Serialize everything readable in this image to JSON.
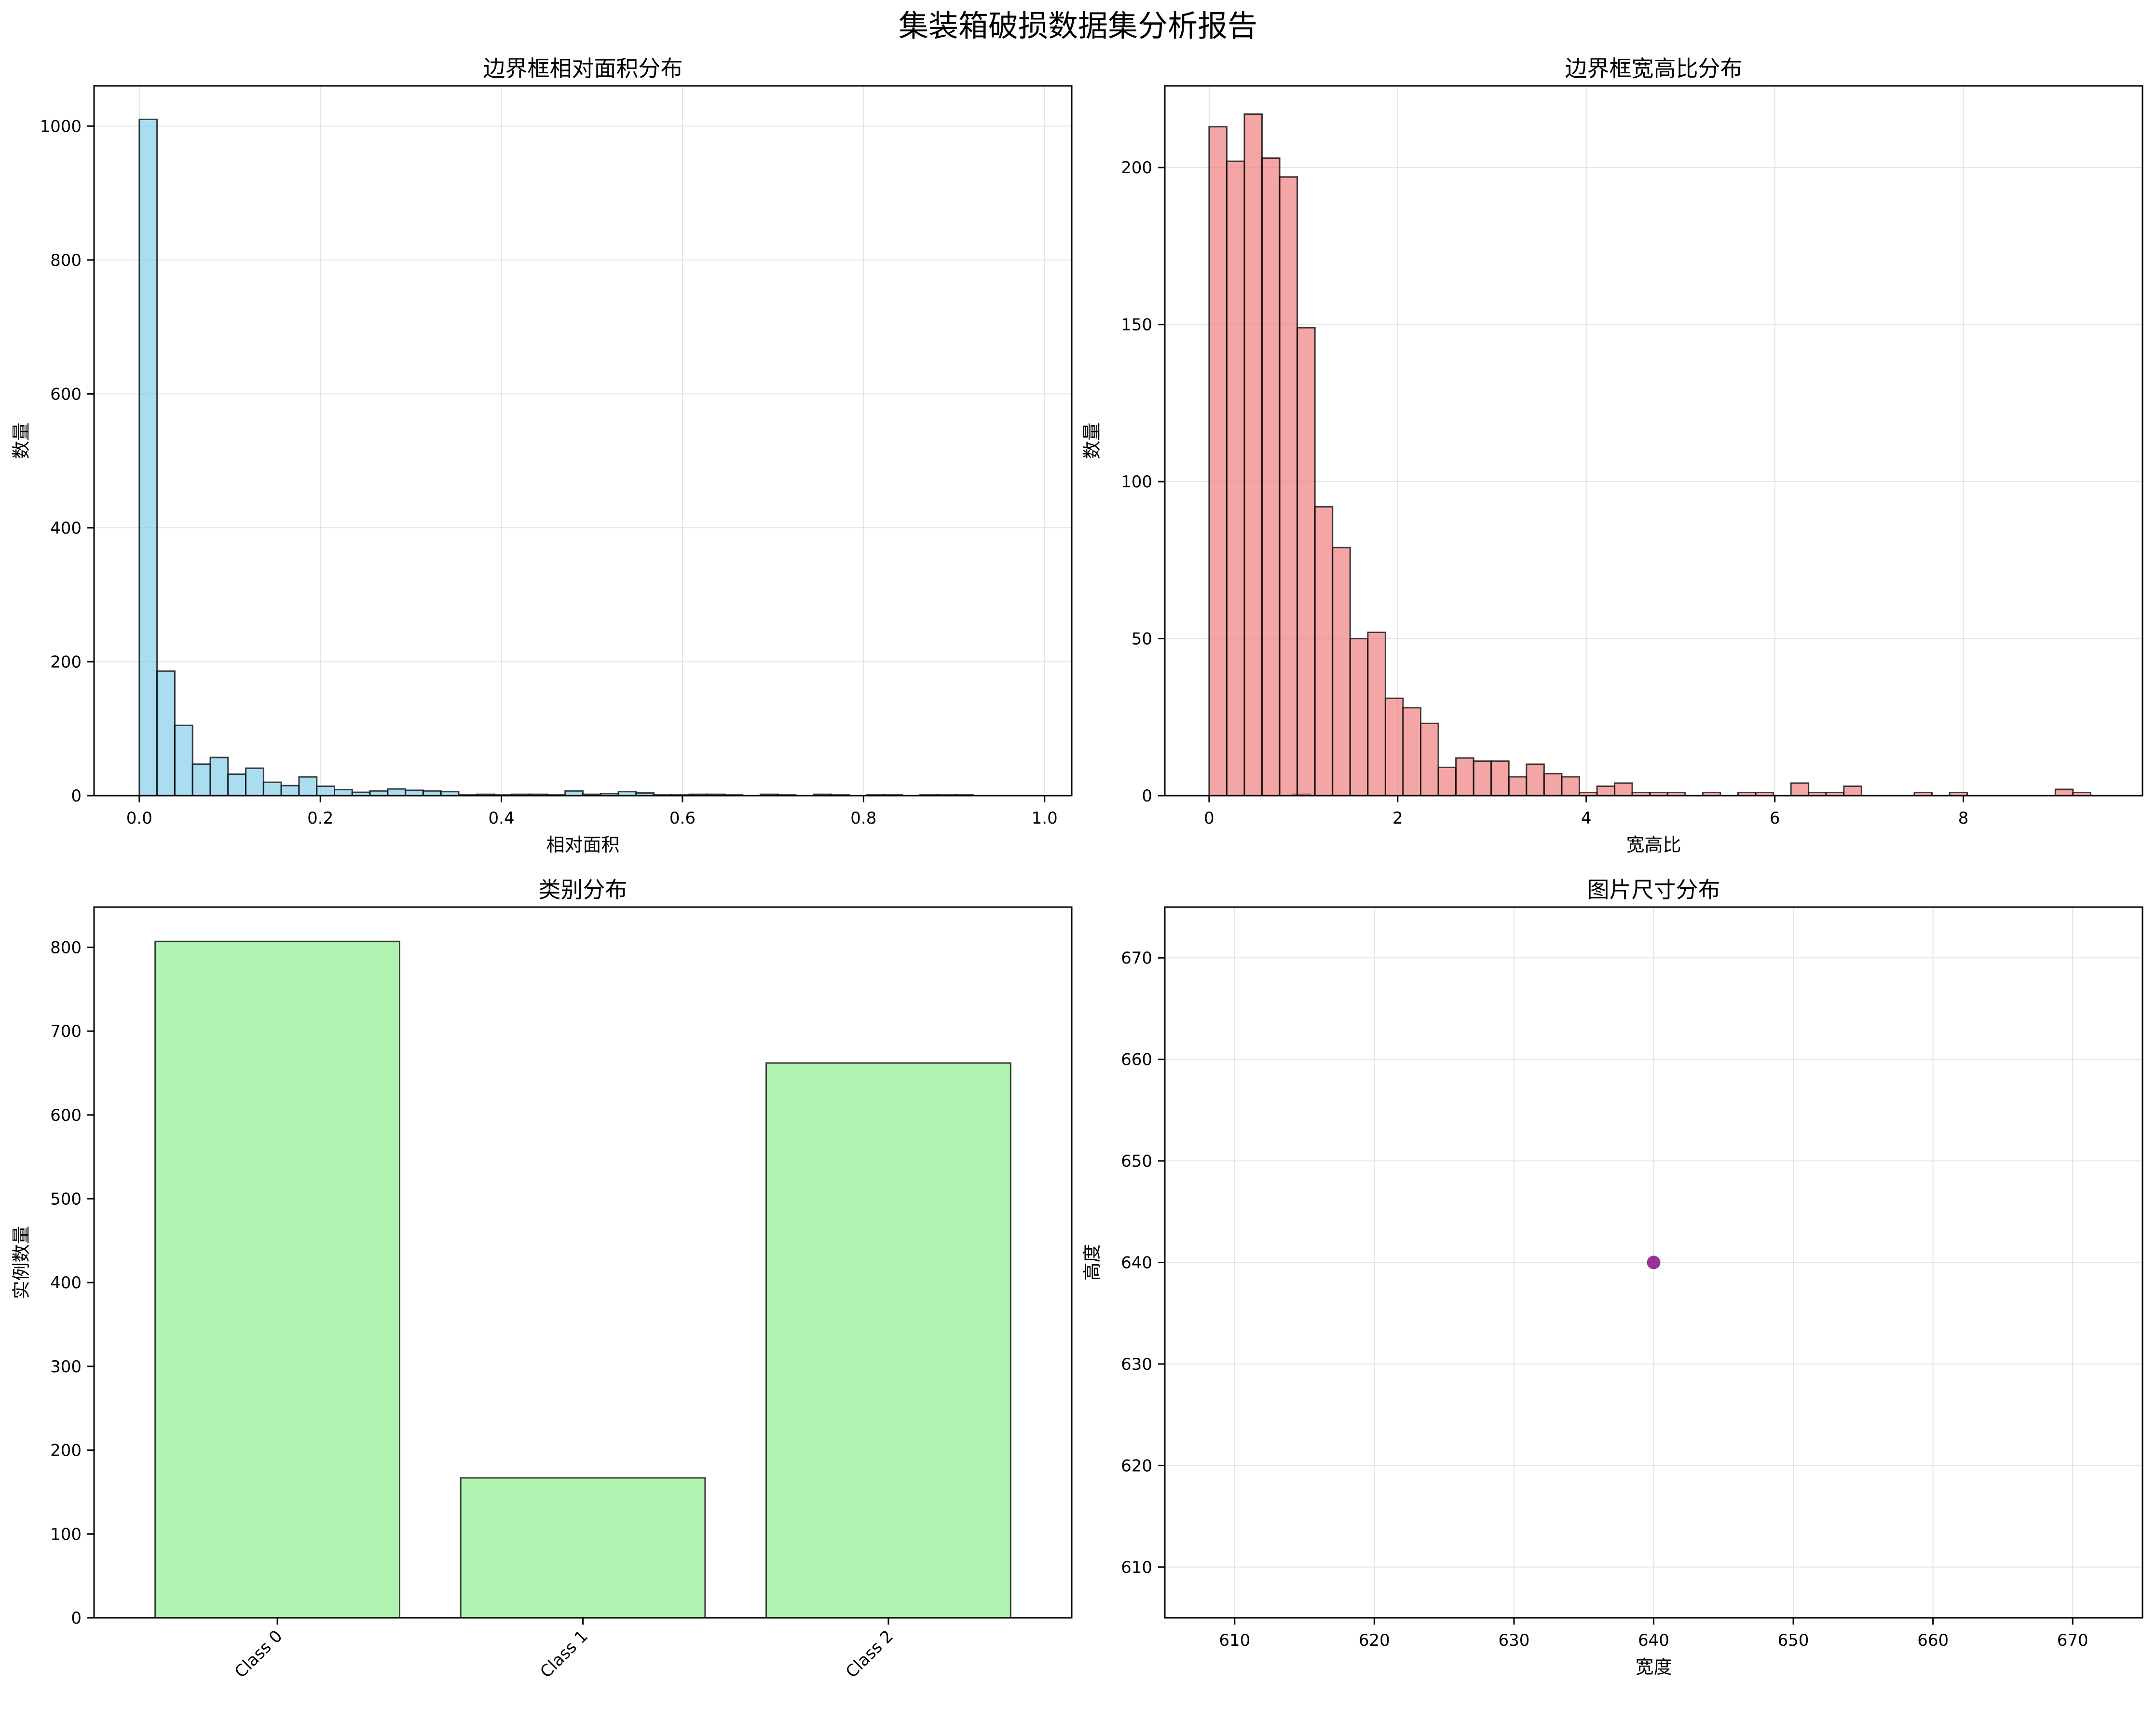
{
  "suptitle": "集装箱破损数据集分析报告",
  "chart_data": [
    {
      "type": "bar",
      "subtype": "histogram",
      "title": "边界框相对面积分布",
      "xlabel": "相对面积",
      "ylabel": "数量",
      "bin_start": 0.0,
      "bin_width": 0.0196,
      "counts": [
        1010,
        186,
        105,
        47,
        57,
        32,
        41,
        20,
        15,
        28,
        14,
        9,
        5,
        7,
        10,
        8,
        7,
        6,
        1,
        2,
        1,
        2,
        2,
        1,
        7,
        2,
        3,
        6,
        4,
        1,
        1,
        2,
        2,
        1,
        0,
        2,
        1,
        0,
        2,
        1,
        0,
        1,
        1,
        0,
        1,
        1,
        1,
        0,
        0,
        0,
        0,
        0,
        0,
        0,
        0,
        0,
        0,
        0,
        0,
        0,
        0,
        0,
        0,
        0,
        0,
        2
      ],
      "xlim": [
        -0.05,
        1.03
      ],
      "ylim": [
        0,
        1060
      ],
      "xticks": [
        0.0,
        0.2,
        0.4,
        0.6,
        0.8,
        1.0
      ],
      "xtick_labels": [
        "0.0",
        "0.2",
        "0.4",
        "0.6",
        "0.8",
        "1.0"
      ],
      "yticks": [
        0,
        200,
        400,
        600,
        800,
        1000
      ],
      "ytick_labels": [
        "0",
        "200",
        "400",
        "600",
        "800",
        "1000"
      ],
      "grid": true,
      "color": "#87ceeb"
    },
    {
      "type": "bar",
      "subtype": "histogram",
      "title": "边界框宽高比分布",
      "xlabel": "宽高比",
      "ylabel": "数量",
      "bin_start": 0.0,
      "bin_width": 0.187,
      "counts": [
        213,
        202,
        217,
        203,
        197,
        149,
        92,
        79,
        50,
        52,
        31,
        28,
        23,
        9,
        12,
        11,
        11,
        6,
        10,
        7,
        6,
        1,
        3,
        4,
        1,
        1,
        1,
        0,
        1,
        0,
        1,
        1,
        0,
        4,
        1,
        1,
        3,
        0,
        0,
        0,
        1,
        0,
        1,
        0,
        0,
        0,
        0,
        0,
        2,
        1
      ],
      "xlim": [
        -0.47,
        9.9
      ],
      "ylim": [
        0,
        226
      ],
      "xticks": [
        0,
        2,
        4,
        6,
        8
      ],
      "xtick_labels": [
        "0",
        "2",
        "4",
        "6",
        "8"
      ],
      "yticks": [
        0,
        50,
        100,
        150,
        200
      ],
      "ytick_labels": [
        "0",
        "50",
        "100",
        "150",
        "200"
      ],
      "grid": true,
      "color": "#f08080"
    },
    {
      "type": "bar",
      "title": "类别分布",
      "xlabel": "",
      "ylabel": "实例数量",
      "categories": [
        "Class 0",
        "Class 1",
        "Class 2"
      ],
      "values": [
        807,
        167,
        662
      ],
      "xlim": [
        -0.6,
        2.6
      ],
      "ylim": [
        0,
        848
      ],
      "yticks": [
        0,
        100,
        200,
        300,
        400,
        500,
        600,
        700,
        800
      ],
      "ytick_labels": [
        "0",
        "100",
        "200",
        "300",
        "400",
        "500",
        "600",
        "700",
        "800"
      ],
      "tick_rotation": 45,
      "grid": false,
      "color": "#90ee90"
    },
    {
      "type": "scatter",
      "title": "图片尺寸分布",
      "xlabel": "宽度",
      "ylabel": "高度",
      "points": [
        {
          "x": 640,
          "y": 640
        }
      ],
      "xlim": [
        605,
        675
      ],
      "ylim": [
        605,
        675
      ],
      "xticks": [
        610,
        620,
        630,
        640,
        650,
        660,
        670
      ],
      "xtick_labels": [
        "610",
        "620",
        "630",
        "640",
        "650",
        "660",
        "670"
      ],
      "yticks": [
        610,
        620,
        630,
        640,
        650,
        660,
        670
      ],
      "ytick_labels": [
        "610",
        "620",
        "630",
        "640",
        "650",
        "660",
        "670"
      ],
      "grid": true,
      "color": "#800080"
    }
  ]
}
